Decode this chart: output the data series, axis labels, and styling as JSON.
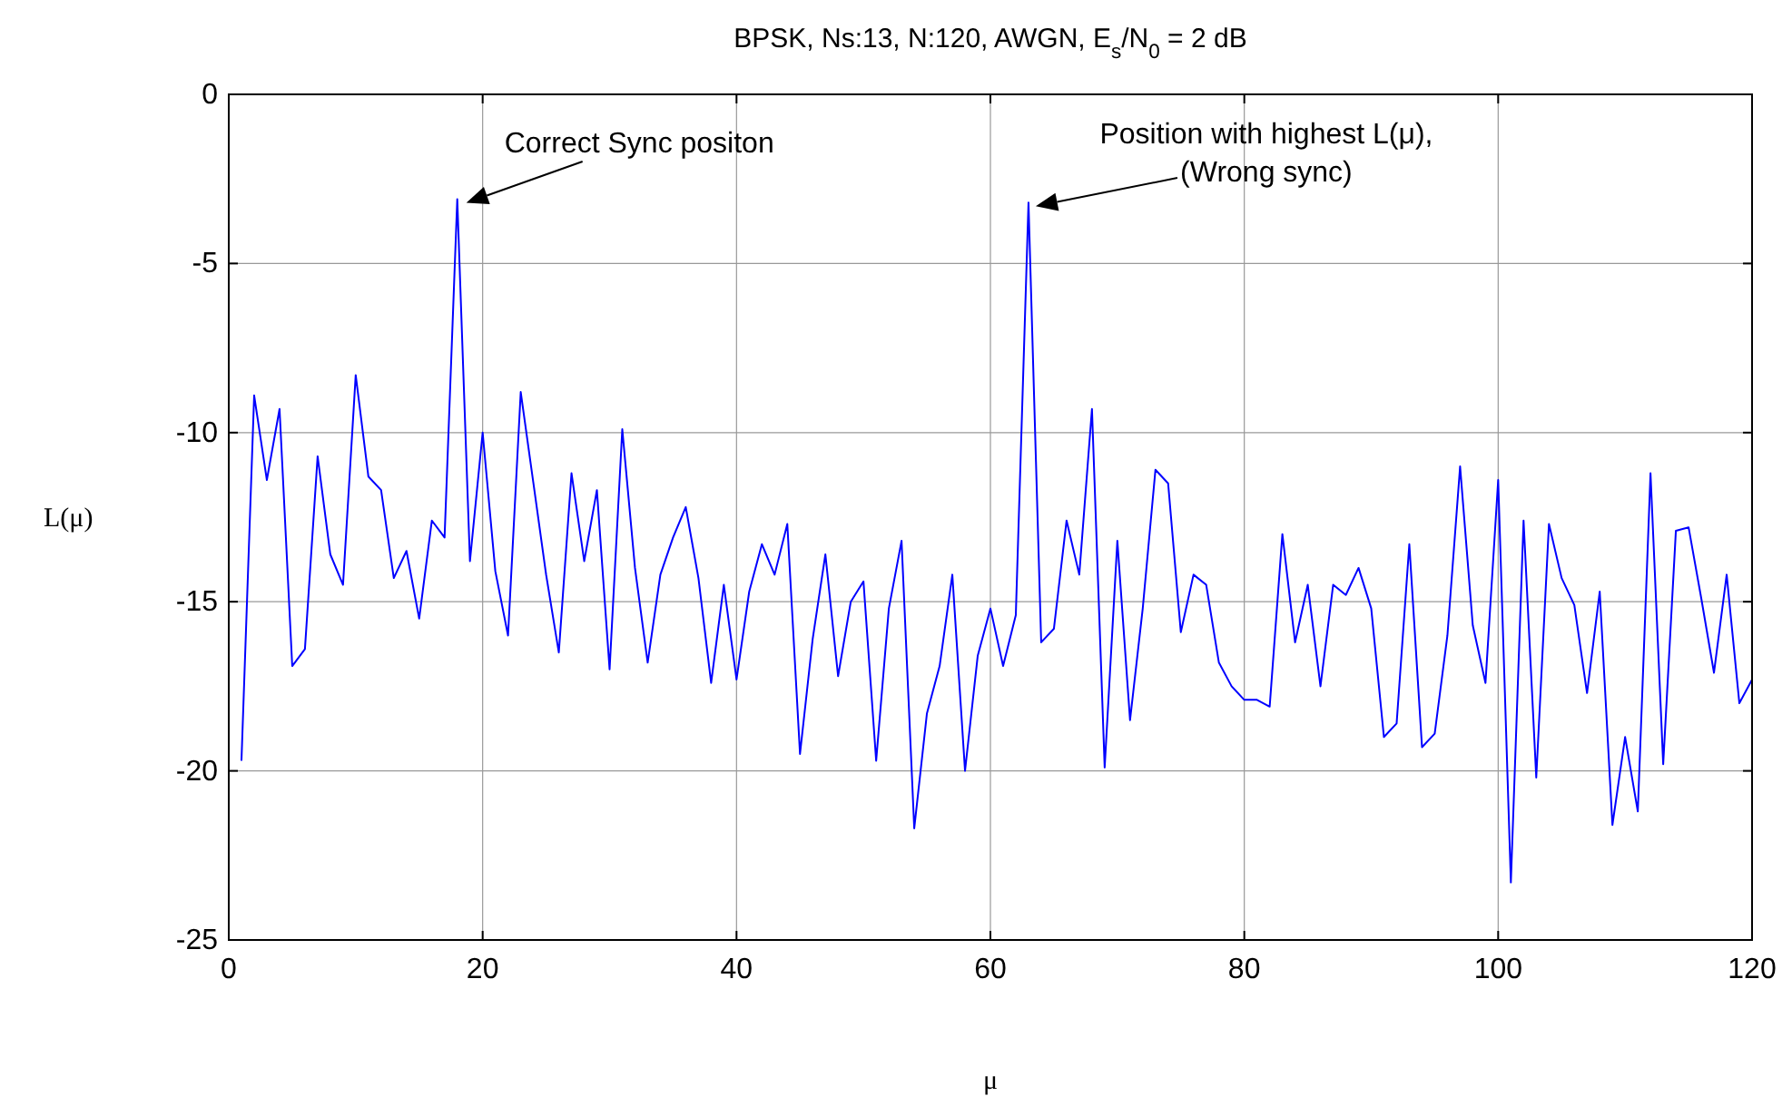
{
  "chart_data": {
    "type": "line",
    "title": "BPSK, Ns:13, N:120, AWGN, E$_{s}$/N$_{0}$ = 2 dB",
    "xlabel": "μ",
    "ylabel": "L(μ)",
    "x": [
      1,
      2,
      3,
      4,
      5,
      6,
      7,
      8,
      9,
      10,
      11,
      12,
      13,
      14,
      15,
      16,
      17,
      18,
      19,
      20,
      21,
      22,
      23,
      24,
      25,
      26,
      27,
      28,
      29,
      30,
      31,
      32,
      33,
      34,
      35,
      36,
      37,
      38,
      39,
      40,
      41,
      42,
      43,
      44,
      45,
      46,
      47,
      48,
      49,
      50,
      51,
      52,
      53,
      54,
      55,
      56,
      57,
      58,
      59,
      60,
      61,
      62,
      63,
      64,
      65,
      66,
      67,
      68,
      69,
      70,
      71,
      72,
      73,
      74,
      75,
      76,
      77,
      78,
      79,
      80,
      81,
      82,
      83,
      84,
      85,
      86,
      87,
      88,
      89,
      90,
      91,
      92,
      93,
      94,
      95,
      96,
      97,
      98,
      99,
      100,
      101,
      102,
      103,
      104,
      105,
      106,
      107,
      108,
      109,
      110,
      111,
      112,
      113,
      114,
      115,
      116,
      117,
      118,
      119,
      120
    ],
    "series": [
      {
        "color": "#0000ff",
        "values": [
          -19.7,
          -8.9,
          -11.4,
          -9.3,
          -16.9,
          -16.4,
          -10.7,
          -13.6,
          -14.5,
          -8.3,
          -11.3,
          -11.7,
          -14.3,
          -13.5,
          -15.5,
          -12.6,
          -13.1,
          -3.1,
          -13.8,
          -10.0,
          -14.1,
          -16.0,
          -8.8,
          -11.5,
          -14.2,
          -16.5,
          -11.2,
          -13.8,
          -11.7,
          -17.0,
          -9.9,
          -14.0,
          -16.8,
          -14.2,
          -13.1,
          -12.2,
          -14.3,
          -17.4,
          -14.5,
          -17.3,
          -14.7,
          -13.3,
          -14.2,
          -12.7,
          -19.5,
          -16.1,
          -13.6,
          -17.2,
          -15.0,
          -14.4,
          -19.7,
          -15.2,
          -13.2,
          -21.7,
          -18.3,
          -16.9,
          -14.2,
          -20.0,
          -16.6,
          -15.2,
          -16.9,
          -15.4,
          -3.2,
          -16.2,
          -15.8,
          -12.6,
          -14.2,
          -9.3,
          -19.9,
          -13.2,
          -18.5,
          -15.2,
          -11.1,
          -11.5,
          -15.9,
          -14.2,
          -14.5,
          -16.8,
          -17.5,
          -17.9,
          -17.9,
          -18.1,
          -13.0,
          -16.2,
          -14.5,
          -17.5,
          -14.5,
          -14.8,
          -14.0,
          -15.2,
          -19.0,
          -18.6,
          -13.3,
          -19.3,
          -18.9,
          -16.0,
          -11.0,
          -15.7,
          -17.4,
          -11.4,
          -23.3,
          -12.6,
          -20.2,
          -12.7,
          -14.3,
          -15.1,
          -17.7,
          -14.7,
          -21.6,
          -19.0,
          -21.2,
          -11.2,
          -19.8,
          -12.9,
          -12.8,
          -14.9,
          -17.1,
          -14.2,
          -18.0,
          -17.3
        ]
      }
    ],
    "xlim": [
      0,
      120
    ],
    "xticks": [
      0,
      20,
      40,
      60,
      80,
      100,
      120
    ],
    "ylim": [
      -25,
      0
    ],
    "yticks": [
      -25,
      -20,
      -15,
      -10,
      -5,
      0
    ],
    "grid": true,
    "annotations": [
      {
        "text": "Correct Sync positon",
        "x": 18,
        "y": -3.1
      },
      {
        "text": "Position with highest L(μ),\n(Wrong sync)",
        "x": 63,
        "y": -3.2
      }
    ]
  }
}
